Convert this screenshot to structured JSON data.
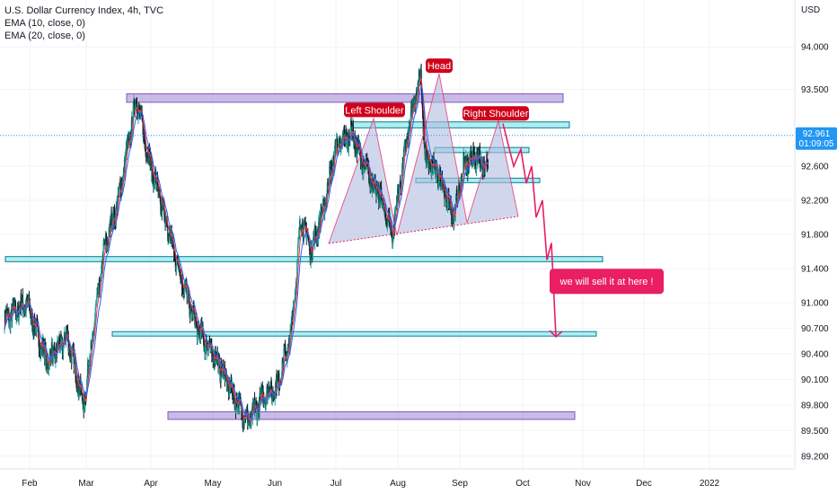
{
  "legend": {
    "title": "U.S. Dollar Currency Index, 4h, TVC",
    "ema10": "EMA (10, close, 0)",
    "ema20": "EMA (20, close, 0)"
  },
  "chart_data": {
    "type": "line",
    "title": "U.S. Dollar Currency Index, 4h, TVC",
    "currency_label": "USD",
    "x_tick_labels": [
      "Feb",
      "Mar",
      "Apr",
      "May",
      "Jun",
      "Jul",
      "Aug",
      "Sep",
      "Oct",
      "Nov",
      "Dec",
      "2022"
    ],
    "y_tick_labels": [
      "94.000",
      "93.500",
      "92.600",
      "92.200",
      "91.800",
      "91.400",
      "91.000",
      "90.700",
      "90.400",
      "90.100",
      "89.800",
      "89.500",
      "89.200"
    ],
    "y_ticks": [
      94.0,
      93.5,
      92.6,
      92.2,
      91.8,
      91.4,
      91.0,
      90.7,
      90.4,
      90.1,
      89.8,
      89.5,
      89.2
    ],
    "ylim": [
      89.05,
      94.55
    ],
    "grid": true,
    "price_series": {
      "name": "U.S. Dollar Currency Index",
      "x": [
        "Jan 25",
        "Feb 5",
        "Feb 15",
        "Feb 25",
        "Mar 5",
        "Mar 15",
        "Mar 22",
        "Mar 31",
        "Apr 5",
        "Apr 15",
        "Apr 22",
        "Apr 30",
        "May 10",
        "May 18",
        "May 25",
        "Jun 1",
        "Jun 8",
        "Jun 15",
        "Jun 20",
        "Jun 25",
        "Jul 1",
        "Jul 7",
        "Jul 15",
        "Jul 21",
        "Jul 28",
        "Aug 4",
        "Aug 11",
        "Aug 18",
        "Aug 20",
        "Aug 27",
        "Sep 3",
        "Sep 8",
        "Sep 14",
        "Sep 20"
      ],
      "y": [
        90.8,
        91.0,
        90.3,
        90.6,
        89.8,
        91.6,
        92.2,
        93.4,
        92.8,
        91.9,
        91.3,
        90.7,
        90.3,
        89.9,
        89.6,
        89.9,
        90.0,
        90.6,
        92.0,
        91.6,
        92.1,
        92.8,
        93.0,
        92.6,
        92.3,
        91.8,
        92.9,
        93.7,
        92.7,
        92.5,
        92.0,
        92.6,
        92.7,
        92.6
      ]
    },
    "horizontal_lines": {
      "last_price": 92.961,
      "last_price_label": "92.961",
      "countdown_label": "01:09:05"
    },
    "zones": [
      {
        "color": "purple",
        "y_low": 93.35,
        "y_high": 93.45
      },
      {
        "color": "teal",
        "y_low": 93.05,
        "y_high": 93.12
      },
      {
        "color": "teal",
        "y_low": 92.76,
        "y_high": 92.82
      },
      {
        "color": "teal",
        "y_low": 92.42,
        "y_high": 92.46
      },
      {
        "color": "teal",
        "y_low": 91.48,
        "y_high": 91.54
      },
      {
        "color": "teal",
        "y_low": 90.61,
        "y_high": 90.66
      },
      {
        "color": "purple",
        "y_low": 89.63,
        "y_high": 89.72
      }
    ],
    "annotations": [
      {
        "text": "Head",
        "y": 93.78
      },
      {
        "text": "Left Shoulder",
        "y": 93.26
      },
      {
        "text": "Right Shoulder",
        "y": 93.22
      },
      {
        "text": "we will sell it at here !",
        "y": 91.25
      }
    ],
    "projection": {
      "y": [
        93.1,
        92.6,
        92.8,
        92.4,
        92.6,
        92.0,
        92.2,
        91.5,
        91.7,
        90.6
      ]
    }
  },
  "colors": {
    "background": "#ffffff",
    "grid": "#f0f3fa",
    "candle_up": "#26a69a",
    "candle_down": "#131722",
    "ema10": "#f23645",
    "ema20": "#2962ff",
    "zone_purple_fill": "#b39ddb",
    "zone_purple_border": "#7e57c2",
    "zone_teal_fill": "#80deea",
    "zone_teal_border": "#00838f",
    "triangle_fill": "#b0bde0",
    "annotation_red": "#d0021b",
    "projection_pink": "#e91e63",
    "price_tag": "#2196f3"
  }
}
